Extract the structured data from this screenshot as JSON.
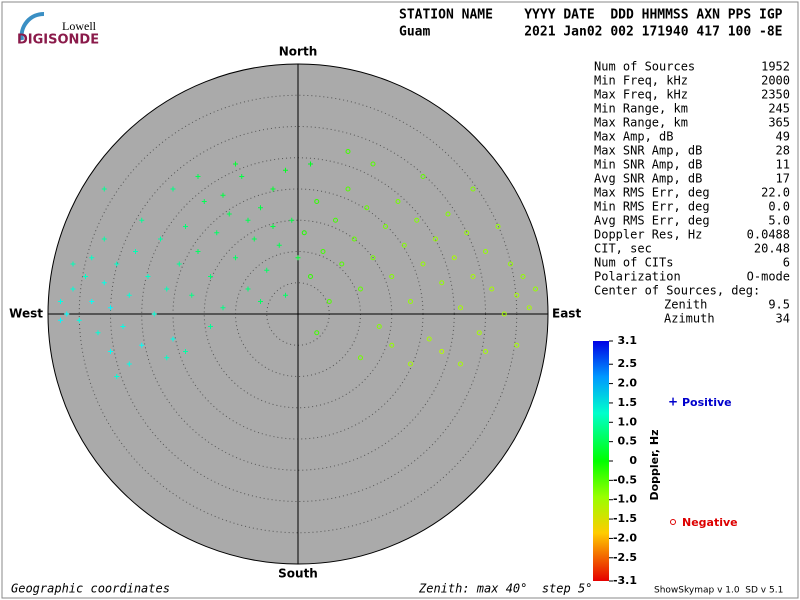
{
  "header": {
    "logo_top": "Lowell",
    "logo_bottom": "DIGISONDE",
    "columns": "STATION NAME    YYYY DATE  DDD HHMMSS AXN PPS IGP",
    "values": "Guam            2021 Jan02 002 171940 417 100 -8E"
  },
  "stats": [
    [
      "Num of Sources",
      "1952"
    ],
    [
      "Min Freq, kHz",
      "2000"
    ],
    [
      "Max Freq, kHz",
      "2350"
    ],
    [
      "Min Range, km",
      "245"
    ],
    [
      "Max Range, km",
      "365"
    ],
    [
      "Max Amp, dB",
      "49"
    ],
    [
      "Max SNR Amp, dB",
      "28"
    ],
    [
      "Min SNR Amp, dB",
      "11"
    ],
    [
      "Avg SNR Amp, dB",
      "17"
    ],
    [
      "Max RMS Err, deg",
      "22.0"
    ],
    [
      "Min RMS Err, deg",
      "0.0"
    ],
    [
      "Avg RMS Err, deg",
      "5.0"
    ],
    [
      "Doppler Res, Hz",
      "0.0488"
    ],
    [
      "CIT, sec",
      "20.48"
    ],
    [
      "Num of CITs",
      "6"
    ],
    [
      "Polarization",
      "O-mode"
    ]
  ],
  "center": {
    "title": "Center of Sources, deg:",
    "zenith_label": "Zenith",
    "zenith": "9.5",
    "azimuth_label": "Azimuth",
    "azimuth": "34"
  },
  "skymap": {
    "north": "North",
    "south": "South",
    "east": "East",
    "west": "West",
    "zenith_max": 40,
    "zenith_step": 5,
    "points": [
      [
        -38,
        2,
        1.4
      ],
      [
        -37,
        0,
        1.5
      ],
      [
        -36,
        4,
        1.3
      ],
      [
        -35,
        -1,
        1.4
      ],
      [
        -34,
        6,
        1.2
      ],
      [
        -33,
        2,
        1.5
      ],
      [
        -32,
        -3,
        1.3
      ],
      [
        -31,
        5,
        1.4
      ],
      [
        -30,
        1,
        1.6
      ],
      [
        -29,
        8,
        1.2
      ],
      [
        -28,
        -2,
        1.4
      ],
      [
        -27,
        3,
        1.3
      ],
      [
        -26,
        10,
        1.1
      ],
      [
        -25,
        -5,
        1.5
      ],
      [
        -24,
        6,
        1.2
      ],
      [
        -23,
        0,
        1.3
      ],
      [
        -22,
        12,
        1.0
      ],
      [
        -21,
        4,
        1.1
      ],
      [
        -20,
        -4,
        1.4
      ],
      [
        -33,
        9,
        1.2
      ],
      [
        -36,
        8,
        1.1
      ],
      [
        -30,
        -6,
        1.5
      ],
      [
        -25,
        15,
        0.9
      ],
      [
        -31,
        12,
        1.0
      ],
      [
        -27,
        -8,
        1.4
      ],
      [
        -38,
        -1,
        1.6
      ],
      [
        -29,
        -10,
        1.3
      ],
      [
        -21,
        -7,
        1.2
      ],
      [
        -20,
        20,
        0.8
      ],
      [
        -31,
        20,
        0.9
      ],
      [
        -19,
        8,
        0.9
      ],
      [
        -18,
        14,
        0.7
      ],
      [
        -17,
        3,
        0.8
      ],
      [
        -16,
        10,
        0.6
      ],
      [
        -15,
        18,
        0.5
      ],
      [
        -14,
        6,
        0.7
      ],
      [
        -13,
        13,
        0.6
      ],
      [
        -12,
        1,
        0.8
      ],
      [
        -11,
        16,
        0.5
      ],
      [
        -10,
        9,
        0.6
      ],
      [
        -9,
        22,
        0.4
      ],
      [
        -8,
        4,
        0.7
      ],
      [
        -7,
        12,
        0.5
      ],
      [
        -6,
        17,
        0.4
      ],
      [
        -5,
        7,
        0.6
      ],
      [
        -4,
        20,
        0.3
      ],
      [
        -3,
        11,
        0.5
      ],
      [
        -2,
        3,
        0.6
      ],
      [
        -1,
        15,
        0.4
      ],
      [
        0,
        9,
        0.3
      ],
      [
        -16,
        22,
        0.5
      ],
      [
        -12,
        19,
        0.4
      ],
      [
        -8,
        15,
        0.5
      ],
      [
        -4,
        14,
        0.4
      ],
      [
        -14,
        -2,
        0.9
      ],
      [
        -18,
        -6,
        1.0
      ],
      [
        -10,
        24,
        0.3
      ],
      [
        -6,
        2,
        0.6
      ],
      [
        -2,
        23,
        0.2
      ],
      [
        2,
        24,
        0.2
      ],
      [
        1,
        13,
        -0.2
      ],
      [
        2,
        6,
        -0.3
      ],
      [
        3,
        18,
        -0.3
      ],
      [
        4,
        10,
        -0.4
      ],
      [
        5,
        2,
        -0.5
      ],
      [
        6,
        15,
        -0.4
      ],
      [
        7,
        8,
        -0.5
      ],
      [
        8,
        20,
        -0.5
      ],
      [
        9,
        12,
        -0.6
      ],
      [
        10,
        4,
        -0.6
      ],
      [
        11,
        17,
        -0.6
      ],
      [
        12,
        9,
        -0.7
      ],
      [
        13,
        -2,
        -0.8
      ],
      [
        14,
        14,
        -0.7
      ],
      [
        15,
        6,
        -0.8
      ],
      [
        16,
        18,
        -0.7
      ],
      [
        17,
        11,
        -0.8
      ],
      [
        18,
        2,
        -0.9
      ],
      [
        19,
        15,
        -0.8
      ],
      [
        20,
        8,
        -0.9
      ],
      [
        21,
        -4,
        -1.0
      ],
      [
        22,
        12,
        -0.9
      ],
      [
        23,
        5,
        -0.9
      ],
      [
        24,
        16,
        -0.8
      ],
      [
        25,
        9,
        -1.0
      ],
      [
        26,
        1,
        -1.0
      ],
      [
        27,
        13,
        -0.9
      ],
      [
        28,
        6,
        -1.0
      ],
      [
        29,
        -3,
        -1.0
      ],
      [
        30,
        10,
        -0.9
      ],
      [
        31,
        4,
        -1.0
      ],
      [
        32,
        14,
        -0.9
      ],
      [
        33,
        0,
        -1.0
      ],
      [
        34,
        8,
        -0.9
      ],
      [
        35,
        3,
        -1.0
      ],
      [
        36,
        6,
        -0.9
      ],
      [
        37,
        1,
        -1.0
      ],
      [
        38,
        4,
        -0.9
      ],
      [
        23,
        -6,
        -1.1
      ],
      [
        35,
        -5,
        -1.0
      ],
      [
        18,
        -8,
        -1.0
      ],
      [
        28,
        20,
        -0.8
      ],
      [
        12,
        24,
        -0.5
      ],
      [
        20,
        22,
        -0.6
      ],
      [
        8,
        26,
        -0.4
      ],
      [
        15,
        -5,
        -0.9
      ],
      [
        30,
        -6,
        -1.0
      ],
      [
        3,
        -3,
        -0.4
      ],
      [
        10,
        -7,
        -0.7
      ],
      [
        26,
        -8,
        -1.0
      ]
    ]
  },
  "colorbar": {
    "label": "Doppler, Hz",
    "lim": [
      -3.1,
      3.1
    ],
    "ticks": [
      3.1,
      {
        "value": 2.5,
        "label": "2.5"
      },
      {
        "value": 2,
        "label": "2.0"
      },
      {
        "value": 1.5,
        "label": "1.5"
      },
      {
        "value": 1,
        "label": "1.0"
      },
      {
        "value": 0.5,
        "label": "0.5"
      },
      0,
      {
        "value": -0.5,
        "label": "-0.5"
      },
      {
        "value": -1,
        "label": "-1.0"
      },
      {
        "value": -1.5,
        "label": "-1.5"
      },
      {
        "value": -2,
        "label": "-2.0"
      },
      {
        "value": -2.5,
        "label": "-2.5"
      },
      -3.1
    ]
  },
  "legend": {
    "positive": "Positive",
    "negative": "Negative"
  },
  "footer": {
    "left": "Geographic coordinates",
    "center": "Zenith: max 40°  step 5°",
    "right": "ShowSkymap v 1.0  SD v 5.1"
  }
}
